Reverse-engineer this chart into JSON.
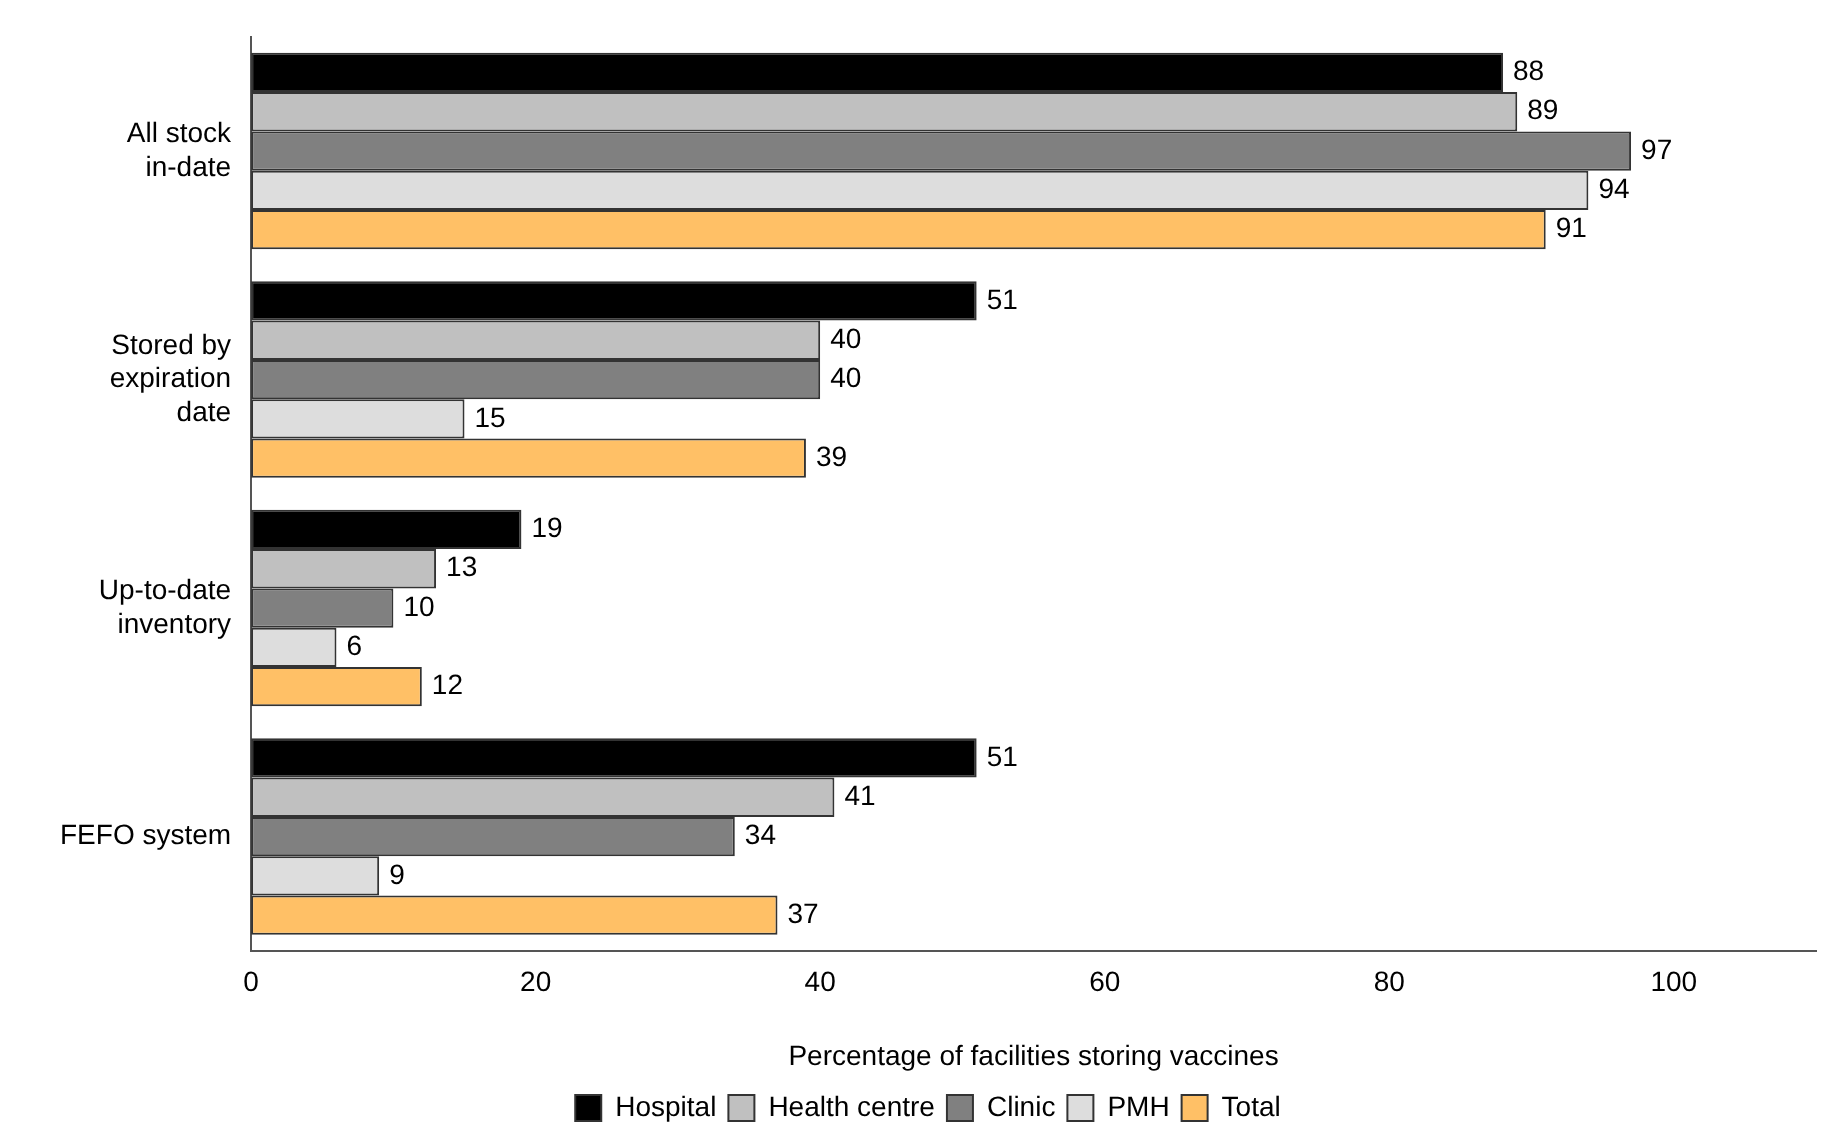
{
  "chart_data": {
    "type": "bar",
    "orientation": "horizontal",
    "xlabel": "Percentage of facilities storing vaccines",
    "categories": [
      "All stock in-date",
      "Stored by expiration date",
      "Up-to-date inventory",
      "FEFO system"
    ],
    "series": [
      {
        "name": "Hospital",
        "color": "#000000",
        "values": [
          88,
          51,
          19,
          51
        ]
      },
      {
        "name": "Health centre",
        "color": "#c0c0c0",
        "values": [
          89,
          40,
          13,
          41
        ]
      },
      {
        "name": "Clinic",
        "color": "#808080",
        "values": [
          97,
          40,
          10,
          34
        ]
      },
      {
        "name": "PMH",
        "color": "#dddddd",
        "values": [
          94,
          15,
          6,
          9
        ]
      },
      {
        "name": "Total",
        "color": "#ffc066",
        "values": [
          91,
          39,
          12,
          37
        ]
      }
    ],
    "xlim": [
      0,
      110
    ],
    "xticks": [
      0,
      20,
      40,
      60,
      80,
      100
    ],
    "grid": false,
    "legend": "bottom",
    "data_labels": true
  }
}
